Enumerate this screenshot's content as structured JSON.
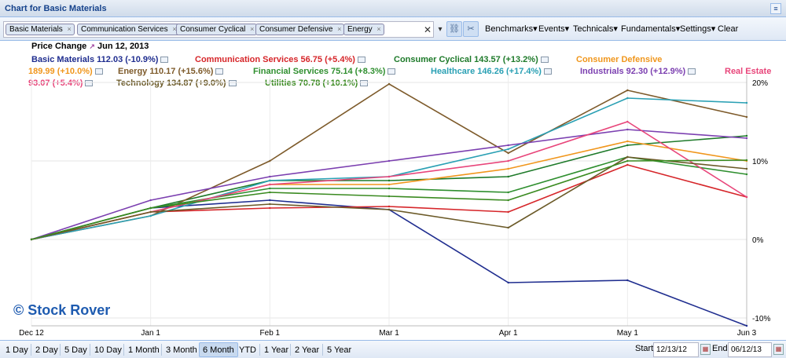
{
  "window": {
    "title": "Chart for Basic Materials",
    "collapse_glyph": "≡"
  },
  "tags": [
    {
      "label": "Basic Materials"
    },
    {
      "label": "Communication Services"
    },
    {
      "label": "Consumer Cyclical"
    },
    {
      "label": "Consumer Defensive"
    },
    {
      "label": "Energy"
    }
  ],
  "tag_remove_glyph": "×",
  "clear_glyph": "✕",
  "dropdown_glyph": "▾",
  "icons": {
    "link": "link-icon",
    "unlink": "unlink-icon",
    "link_glyph": "⛓",
    "unlink_glyph": "✂"
  },
  "menus": [
    "Benchmarks▾",
    "Events▾",
    "Technicals▾",
    "Fundamentals▾",
    "Settings▾",
    "Clear"
  ],
  "price_change": {
    "label": "Price Change",
    "date": "Jun 12, 2013",
    "icon_glyph": "↗"
  },
  "legend": [
    {
      "text": "Basic Materials 112.03 (-10.9%)",
      "color": "#1f2d8f"
    },
    {
      "text": "Communication Services 56.75 (+5.4%)",
      "color": "#d6262a"
    },
    {
      "text": "Consumer Cyclical 143.57 (+13.2%)",
      "color": "#1e7a2a"
    },
    {
      "text": "Consumer Defensive",
      "color": "#f0961c"
    },
    {
      "text": "189.99 (+10.0%)",
      "color": "#f0961c"
    },
    {
      "text": "Energy 110.17 (+15.6%)",
      "color": "#7d5a2a"
    },
    {
      "text": "Financial Services 75.14 (+8.3%)",
      "color": "#2f8f2f"
    },
    {
      "text": "Healthcare 146.26 (+17.4%)",
      "color": "#2aa0b4"
    },
    {
      "text": "Industrials 92.30 (+12.9%)",
      "color": "#7b3fb0"
    },
    {
      "text": "Real Estate",
      "color": "#e8457a"
    },
    {
      "text": "93.07 (+5.4%)",
      "color": "#e8457a"
    },
    {
      "text": "Technology 134.87 (+9.0%)",
      "color": "#6b5a28"
    },
    {
      "text": "Utilities 70.78 (+10.1%)",
      "color": "#3a8a20"
    }
  ],
  "watermark": "© Stock Rover",
  "chart_data": {
    "type": "line",
    "x": [
      "Dec 12",
      "Jan 1",
      "Feb 1",
      "Mar 1",
      "Apr 1",
      "May 1",
      "Jun 3"
    ],
    "x_ticks": [
      "Dec 12",
      "Jan 1",
      "Feb 1",
      "Mar 1",
      "Apr 1",
      "May 1",
      "Jun 3"
    ],
    "y_ticks": [
      "20%",
      "10%",
      "0%",
      "-10%"
    ],
    "ylim": [
      -11,
      21
    ],
    "series": [
      {
        "name": "Basic Materials",
        "color": "#1f2d8f",
        "values": [
          0,
          4.0,
          5.0,
          3.8,
          -5.5,
          -5.2,
          -11.0
        ]
      },
      {
        "name": "Communication Services",
        "color": "#d6262a",
        "values": [
          0,
          3.5,
          4.0,
          4.2,
          3.5,
          9.5,
          5.4
        ]
      },
      {
        "name": "Consumer Cyclical",
        "color": "#1e7a2a",
        "values": [
          0,
          4.0,
          7.5,
          7.5,
          8.0,
          12.0,
          13.2
        ]
      },
      {
        "name": "Consumer Defensive",
        "color": "#f0961c",
        "values": [
          0,
          3.5,
          7.0,
          7.0,
          9.0,
          12.5,
          10.0
        ]
      },
      {
        "name": "Energy",
        "color": "#7d5a2a",
        "values": [
          0,
          3.0,
          10.0,
          19.8,
          11.0,
          19.0,
          15.6
        ]
      },
      {
        "name": "Financial Services",
        "color": "#2f8f2f",
        "values": [
          0,
          4.0,
          6.5,
          6.5,
          6.0,
          10.5,
          8.3
        ]
      },
      {
        "name": "Healthcare",
        "color": "#2aa0b4",
        "values": [
          0,
          3.0,
          7.5,
          8.0,
          11.5,
          18.0,
          17.4
        ]
      },
      {
        "name": "Industrials",
        "color": "#7b3fb0",
        "values": [
          0,
          5.0,
          8.0,
          10.0,
          12.0,
          14.0,
          12.9
        ]
      },
      {
        "name": "Real Estate",
        "color": "#e8457a",
        "values": [
          0,
          3.5,
          7.0,
          8.0,
          10.0,
          15.0,
          5.4
        ]
      },
      {
        "name": "Technology",
        "color": "#6b5a28",
        "values": [
          0,
          3.5,
          4.5,
          3.8,
          1.5,
          10.5,
          9.0
        ]
      },
      {
        "name": "Utilities",
        "color": "#3a8a20",
        "values": [
          0,
          4.0,
          6.0,
          5.5,
          5.0,
          10.0,
          10.1
        ]
      }
    ]
  },
  "ranges": [
    {
      "label": "1 Day",
      "active": false
    },
    {
      "label": "2 Day",
      "active": false
    },
    {
      "label": "5 Day",
      "active": false
    },
    {
      "label": "10 Day",
      "active": false
    },
    {
      "label": "1 Month",
      "active": false
    },
    {
      "label": "3 Month",
      "active": false
    },
    {
      "label": "6 Month",
      "active": true
    },
    {
      "label": "YTD",
      "active": false
    },
    {
      "label": "1 Year",
      "active": false
    },
    {
      "label": "2 Year",
      "active": false
    },
    {
      "label": "5 Year",
      "active": false
    }
  ],
  "dates": {
    "start_label": "Start",
    "start_value": "12/13/12",
    "end_label": "End",
    "end_value": "06/12/13",
    "calendar_glyph": "▦"
  }
}
